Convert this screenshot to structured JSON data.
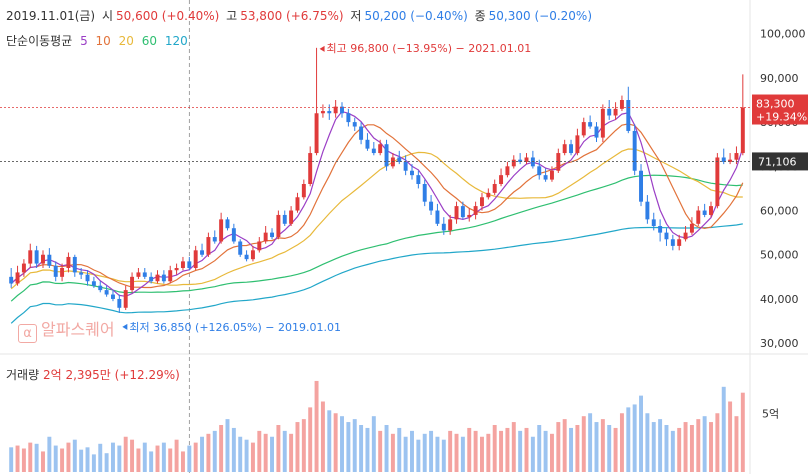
{
  "header": {
    "date": "2019.11.01(금)",
    "open_label": "시",
    "open_value": "50,600 (+0.40%)",
    "high_label": "고",
    "high_value": "53,800 (+6.75%)",
    "low_label": "저",
    "low_value": "50,200 (−0.40%)",
    "close_label": "종",
    "close_value": "50,300 (−0.20%)"
  },
  "ma_legend": {
    "label": "단순이동평균",
    "periods": [
      "5",
      "10",
      "20",
      "60",
      "120"
    ]
  },
  "volume_header": {
    "label": "거래량",
    "value": "2억 2,395만 (+12.29%)"
  },
  "watermark": {
    "icon": "α",
    "text": "알파스퀘어"
  },
  "colors": {
    "up": "#e03a3a",
    "down": "#2f7ee6",
    "ma5": "#9b3fc6",
    "ma10": "#e2733b",
    "ma20": "#e8b93b",
    "ma60": "#2fbf71",
    "ma120": "#22a7c9",
    "vol_up": "#f4a3a0",
    "vol_down": "#9cc3f0"
  },
  "chart_data": {
    "type": "candlestick",
    "y_axis": {
      "ticks": [
        "100,000",
        "90,000",
        "80,000",
        "70,000",
        "60,000",
        "50,000",
        "40,000",
        "30,000"
      ],
      "ylim": [
        28000,
        104000
      ]
    },
    "volume_axis": {
      "tick": "5억"
    },
    "price_labels": [
      {
        "name": "current",
        "value": "83,300",
        "change": "+19.34%"
      },
      {
        "name": "reference",
        "value": "71,106"
      }
    ],
    "annotations": [
      {
        "type": "high",
        "text": "최고 96,800 (−13.95%) − 2021.01.01"
      },
      {
        "type": "low",
        "text": "최저 36,850 (+126.05%) − 2019.01.01"
      }
    ],
    "candles": {
      "open": [
        45000,
        43500,
        46000,
        48000,
        51000,
        48000,
        50000,
        47500,
        45000,
        47000,
        49500,
        46000,
        45500,
        44000,
        43000,
        42000,
        41000,
        40000,
        38000,
        42000,
        45000,
        46000,
        45000,
        44000,
        45500,
        44000,
        46500,
        47000,
        48500,
        47000,
        51000,
        50000,
        54000,
        53000,
        58000,
        56000,
        53000,
        50000,
        49000,
        51000,
        53000,
        55000,
        54000,
        59000,
        57000,
        60000,
        63000,
        66000,
        73000,
        82000,
        82500,
        82000,
        83500,
        82000,
        80000,
        79000,
        76000,
        74000,
        73000,
        75000,
        70000,
        72000,
        71000,
        69000,
        68000,
        66000,
        62000,
        60000,
        57000,
        55500,
        58000,
        61000,
        58500,
        59000,
        61000,
        63000,
        64000,
        66000,
        68000,
        70000,
        71500,
        71000,
        72000,
        70000,
        68000,
        67000,
        69000,
        73000,
        75000,
        73000,
        77000,
        80000,
        79000,
        76500,
        83000,
        81500,
        83000,
        85000,
        78000,
        69000,
        62000,
        58000,
        56500,
        55000,
        53500,
        52000,
        53500,
        55000,
        57000,
        60000,
        59000,
        61000,
        72000,
        71000,
        71500,
        73000
      ],
      "close": [
        43500,
        46000,
        48000,
        51000,
        48000,
        50000,
        47500,
        45000,
        47000,
        49500,
        46000,
        45500,
        44000,
        43000,
        42000,
        41000,
        40000,
        38000,
        42000,
        45000,
        46000,
        45000,
        44000,
        45500,
        44000,
        46500,
        47000,
        48500,
        47000,
        51000,
        50000,
        54000,
        53000,
        58000,
        56000,
        53000,
        50000,
        49000,
        51000,
        53000,
        55000,
        54000,
        59000,
        57000,
        60000,
        63000,
        66000,
        73000,
        82000,
        82500,
        82000,
        83500,
        82000,
        80000,
        79000,
        76000,
        74000,
        73000,
        75000,
        70000,
        72000,
        71000,
        69000,
        68000,
        66000,
        62000,
        60000,
        57000,
        55500,
        58000,
        61000,
        58500,
        59000,
        61000,
        63000,
        64000,
        66000,
        68000,
        70000,
        71500,
        71000,
        72000,
        70000,
        68000,
        67000,
        69000,
        73000,
        75000,
        73000,
        77000,
        80000,
        79000,
        76500,
        83000,
        81500,
        83000,
        85000,
        78000,
        69000,
        62000,
        58000,
        56500,
        55000,
        53500,
        52000,
        53500,
        55000,
        57000,
        60000,
        59000,
        61000,
        72000,
        71000,
        71500,
        73000,
        83300
      ],
      "high": [
        47000,
        47500,
        49000,
        52500,
        52000,
        51000,
        51500,
        48500,
        48000,
        50500,
        50000,
        47000,
        46500,
        45000,
        44000,
        43000,
        42000,
        41000,
        43000,
        46000,
        47000,
        47000,
        46000,
        46500,
        46500,
        47500,
        48000,
        49500,
        49500,
        52000,
        52500,
        55000,
        55500,
        59500,
        58500,
        57000,
        53500,
        51000,
        52000,
        54000,
        56500,
        56000,
        60000,
        60000,
        61000,
        64000,
        67000,
        74500,
        96800,
        84000,
        84000,
        85000,
        84500,
        83000,
        81000,
        80000,
        77500,
        75500,
        76000,
        76000,
        73000,
        73500,
        72500,
        70500,
        69000,
        67000,
        63500,
        61500,
        58500,
        59000,
        62000,
        62000,
        60500,
        62000,
        64000,
        65000,
        67000,
        69500,
        71000,
        72500,
        73000,
        73000,
        73500,
        71500,
        69500,
        70000,
        74000,
        76000,
        76000,
        78500,
        81000,
        81500,
        80000,
        84000,
        85000,
        84500,
        86000,
        88000,
        79500,
        70500,
        63500,
        59500,
        58000,
        56000,
        54500,
        54500,
        56500,
        58500,
        61000,
        61500,
        62000,
        73000,
        74000,
        73000,
        74500,
        90800
      ],
      "low": [
        42500,
        43000,
        45000,
        47000,
        47000,
        47000,
        47000,
        44000,
        44000,
        46000,
        45000,
        44500,
        43000,
        42500,
        41500,
        40500,
        39500,
        36850,
        37500,
        41500,
        44500,
        44500,
        43500,
        43500,
        43500,
        43500,
        45500,
        46500,
        46500,
        46500,
        49500,
        49500,
        52500,
        52500,
        55500,
        52500,
        49500,
        48500,
        48500,
        50500,
        52500,
        53500,
        53500,
        56500,
        56500,
        59500,
        62500,
        65500,
        72500,
        81000,
        80500,
        81000,
        81000,
        79000,
        78000,
        75000,
        73500,
        72500,
        72500,
        69000,
        69500,
        70500,
        68000,
        67000,
        65000,
        61000,
        59000,
        56500,
        54500,
        54500,
        57000,
        58000,
        57500,
        58000,
        60000,
        62500,
        63500,
        65500,
        67500,
        69500,
        70500,
        70500,
        69500,
        67000,
        66500,
        66500,
        68500,
        72500,
        72500,
        72500,
        76500,
        78500,
        75500,
        75500,
        80500,
        80500,
        82500,
        77500,
        68000,
        61000,
        57000,
        55500,
        53000,
        52000,
        51000,
        51000,
        53000,
        54500,
        56500,
        58500,
        58500,
        60500,
        70500,
        70500,
        70500,
        72500
      ]
    },
    "volume": [
      0.42,
      0.45,
      0.4,
      0.5,
      0.48,
      0.35,
      0.6,
      0.45,
      0.4,
      0.5,
      0.55,
      0.38,
      0.42,
      0.3,
      0.48,
      0.32,
      0.5,
      0.45,
      0.6,
      0.55,
      0.4,
      0.5,
      0.35,
      0.45,
      0.5,
      0.4,
      0.55,
      0.35,
      0.45,
      0.5,
      0.6,
      0.65,
      0.7,
      0.8,
      0.9,
      0.75,
      0.6,
      0.55,
      0.5,
      0.7,
      0.65,
      0.6,
      0.8,
      0.7,
      0.65,
      0.85,
      0.9,
      1.1,
      1.55,
      1.2,
      1.05,
      1.0,
      0.95,
      0.85,
      0.9,
      0.8,
      0.75,
      0.95,
      0.7,
      0.8,
      0.65,
      0.75,
      0.6,
      0.7,
      0.55,
      0.65,
      0.7,
      0.6,
      0.55,
      0.7,
      0.65,
      0.6,
      0.75,
      0.7,
      0.6,
      0.65,
      0.8,
      0.7,
      0.75,
      0.85,
      0.7,
      0.75,
      0.6,
      0.8,
      0.7,
      0.65,
      0.85,
      0.9,
      0.75,
      0.8,
      0.95,
      1.0,
      0.85,
      0.9,
      0.8,
      0.75,
      1.0,
      1.1,
      1.15,
      1.3,
      1.0,
      0.85,
      0.9,
      0.8,
      0.7,
      0.75,
      0.85,
      0.8,
      0.9,
      0.95,
      0.85,
      1.0,
      1.45,
      1.2,
      0.95,
      1.35
    ],
    "volume_max": 1.6
  }
}
